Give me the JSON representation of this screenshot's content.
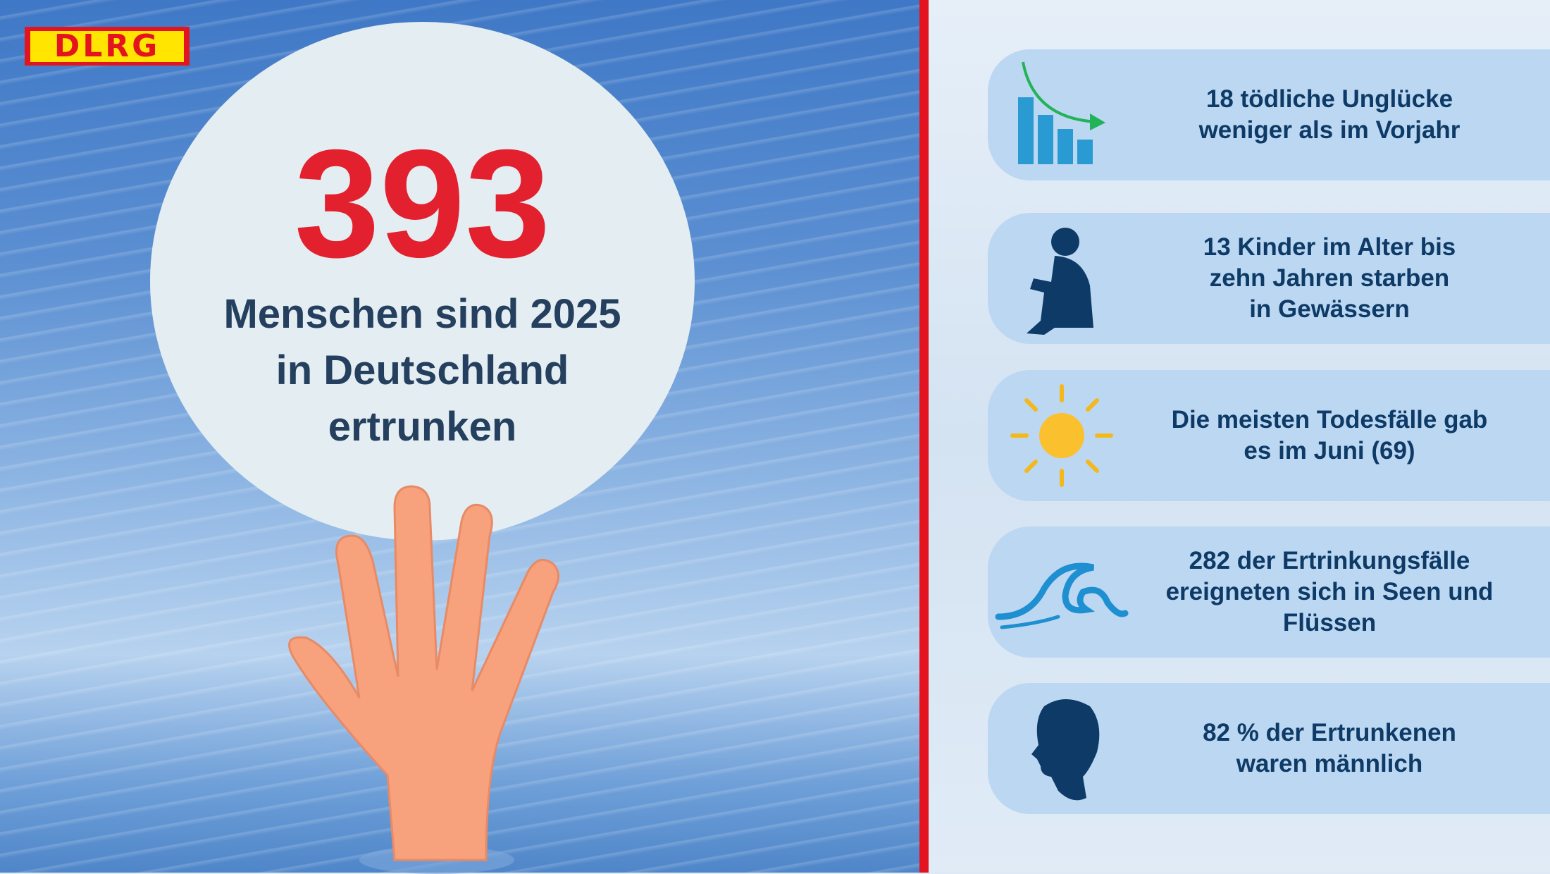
{
  "logo": "DLRG",
  "headline": {
    "number": "393",
    "lines": [
      "Menschen sind 2025",
      "in Deutschland",
      "ertrunken"
    ]
  },
  "colors": {
    "accent_red": "#e3141f",
    "text_navy": "#0d3a66",
    "card_bg": "#bcd7f1",
    "logo_yellow": "#ffe500"
  },
  "facts": [
    {
      "icon": "declining-bar-chart-icon",
      "lines": [
        "18 tödliche Unglücke",
        "weniger als im Vorjahr"
      ]
    },
    {
      "icon": "sitting-child-silhouette-icon",
      "lines": [
        "13 Kinder im Alter bis",
        "zehn Jahren starben",
        "in Gewässern"
      ]
    },
    {
      "icon": "sun-icon",
      "lines": [
        "Die meisten Todesfälle gab",
        "es im Juni (69)"
      ]
    },
    {
      "icon": "wave-icon",
      "lines": [
        "282 der Ertrinkungsfälle",
        "ereigneten sich in Seen und",
        "Flüssen"
      ]
    },
    {
      "icon": "male-head-silhouette-icon",
      "lines": [
        "82 % der Ertrunkenen",
        "waren männlich"
      ]
    }
  ]
}
